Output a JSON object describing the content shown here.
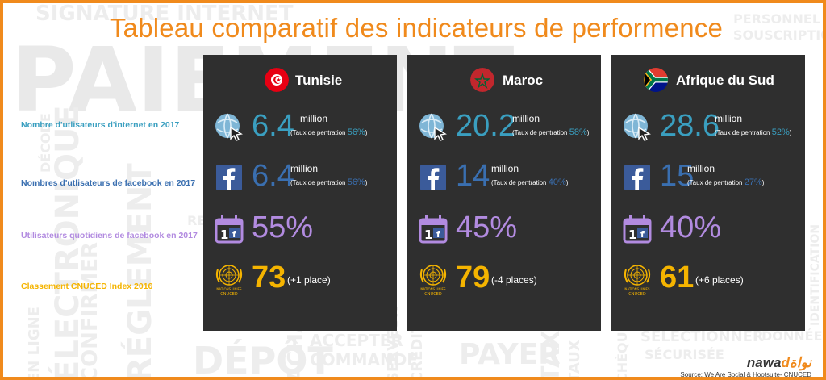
{
  "title": "Tableau comparatif des indicateurs de performence",
  "row_labels": [
    "Nombre d'utlisateurs d'internet en 2017",
    "Nombres d'utlisateurs de facebook en 2017",
    "Utilisateurs quotidiens de facebook en 2017",
    "Classement CNUCED Index 2016"
  ],
  "colors": {
    "accent": "#f08a1c",
    "internet": "#3a9fc0",
    "facebook": "#3a6fb0",
    "daily": "#b28be0",
    "ranking": "#f5b400",
    "card": "#2f2f2f"
  },
  "units": {
    "million": "million",
    "rate_label": "(Taux de pentration "
  },
  "icons": {
    "internet": "globe-cursor-icon",
    "facebook": "facebook-icon",
    "daily": "calendar-facebook-icon",
    "ranking": "un-emblem-icon",
    "un_caption": "NATIONS UNIES\nCNUCED"
  },
  "countries": [
    {
      "name": "Tunisie",
      "flag": "tunisia-flag-icon",
      "internet_users": "6.4",
      "internet_rate": "56%",
      "facebook_users": "6.4",
      "facebook_rate": "56%",
      "daily_facebook": "55%",
      "ranking": "73",
      "ranking_change": "(+1 place)"
    },
    {
      "name": "Maroc",
      "flag": "morocco-flag-icon",
      "internet_users": "20.2",
      "internet_rate": "58%",
      "facebook_users": "14",
      "facebook_rate": "40%",
      "daily_facebook": "45%",
      "ranking": "79",
      "ranking_change": "(-4 places)"
    },
    {
      "name": "Afrique du Sud",
      "flag": "south-africa-flag-icon",
      "internet_users": "28.6",
      "internet_rate": "52%",
      "facebook_users": "15",
      "facebook_rate": "27%",
      "daily_facebook": "40%",
      "ranking": "61",
      "ranking_change": "(+6 places)"
    }
  ],
  "brand": {
    "main": "nawa",
    "accent": "dنواة"
  },
  "source": "Source: We Are Social & Hootsuite- CNUCED",
  "watermark": [
    "SIGNATURE INTERNET",
    "PAIEMENT",
    "ÉLECTRONIQUE",
    "RÉGLEMENT",
    "EN LIGNE",
    "CONFIRMER",
    "DÉPÔT",
    "ACHAT",
    "ACCEPTER",
    "COMMANDE",
    "PAYER",
    "TAXES",
    "SÉLECTIONNER",
    "SÉCURISÉE",
    "DONNÉES",
    "IDENTIFICATION",
    "SOUSCRIPTION",
    "PERSONNEL",
    "SERVEUR",
    "CRÉDIT",
    "TAUX",
    "CHÈQUE",
    "DÉCODE",
    "RE"
  ]
}
